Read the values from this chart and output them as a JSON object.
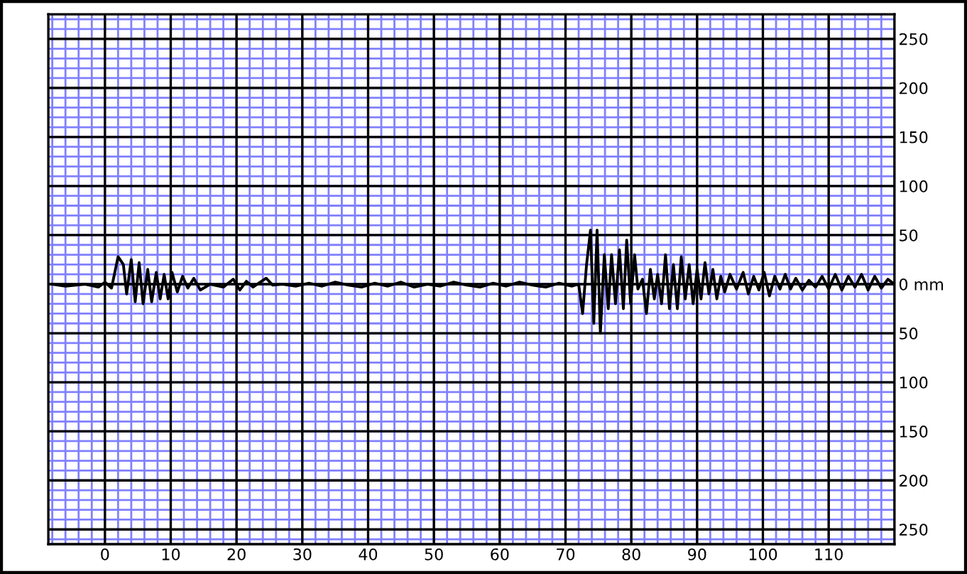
{
  "chart_data": {
    "type": "line",
    "xlim": [
      -8.6,
      120
    ],
    "ylim": [
      -265,
      275
    ],
    "xticks": [
      0,
      10,
      20,
      30,
      40,
      50,
      60,
      70,
      80,
      90,
      100,
      110
    ],
    "yticks": [
      {
        "value": 250,
        "label": "250"
      },
      {
        "value": 200,
        "label": "200"
      },
      {
        "value": 150,
        "label": "150"
      },
      {
        "value": 100,
        "label": "100"
      },
      {
        "value": 50,
        "label": "50"
      },
      {
        "value": 0,
        "label": "0 mm"
      },
      {
        "value": -50,
        "label": "50"
      },
      {
        "value": -100,
        "label": "100"
      },
      {
        "value": -150,
        "label": "150"
      },
      {
        "value": -200,
        "label": "200"
      },
      {
        "value": -250,
        "label": "250"
      }
    ],
    "grid": true,
    "marker": "none",
    "line_style": "solid",
    "series": [
      {
        "color": "#000000",
        "x": [
          -8,
          -6,
          -3,
          -1,
          0,
          1,
          2,
          2.8,
          3.3,
          4,
          4.6,
          5.2,
          5.8,
          6.5,
          7.1,
          7.8,
          8.4,
          9,
          9.6,
          10.2,
          11,
          11.8,
          12.6,
          13.5,
          14.5,
          16,
          18,
          19.5,
          20.5,
          21.5,
          22.5,
          24.5,
          25.5,
          27,
          29,
          31,
          33,
          35,
          37,
          39,
          41,
          43,
          45,
          47,
          49,
          51,
          53,
          55,
          57,
          59,
          61,
          63,
          65,
          67,
          69,
          71,
          72,
          72.6,
          73.2,
          73.8,
          74.3,
          74.8,
          75.3,
          75.9,
          76.5,
          77,
          77.6,
          78.2,
          78.8,
          79.3,
          79.9,
          80.5,
          81,
          81.7,
          82.3,
          82.9,
          83.5,
          84,
          84.6,
          85.2,
          85.8,
          86.4,
          87,
          87.6,
          88.2,
          88.8,
          89.4,
          90,
          90.6,
          91.2,
          91.8,
          92.4,
          93,
          93.6,
          94.2,
          95,
          96,
          97,
          97.8,
          98.6,
          99.4,
          100.2,
          101,
          101.8,
          102.6,
          103.4,
          104.2,
          105,
          106,
          107,
          108,
          109,
          110,
          111,
          112,
          113,
          114,
          115,
          116,
          117,
          118,
          119,
          120
        ],
        "values": [
          0,
          -2,
          0,
          -3,
          2,
          -4,
          28,
          20,
          -10,
          25,
          -18,
          22,
          -20,
          15,
          -18,
          12,
          -15,
          10,
          -15,
          12,
          -8,
          8,
          -4,
          6,
          -6,
          0,
          -3,
          5,
          -6,
          3,
          -3,
          6,
          -1,
          0,
          -2,
          1,
          -2,
          2,
          -1,
          -3,
          1,
          -2,
          2,
          -3,
          0,
          -2,
          2,
          -1,
          -3,
          1,
          -2,
          2,
          -1,
          -3,
          1,
          -2,
          0,
          -30,
          20,
          55,
          -40,
          55,
          -50,
          30,
          -25,
          30,
          -20,
          35,
          -25,
          45,
          -20,
          30,
          -5,
          5,
          -30,
          15,
          -15,
          10,
          -20,
          30,
          -25,
          20,
          -25,
          28,
          -15,
          20,
          -20,
          15,
          -15,
          22,
          -10,
          15,
          -15,
          8,
          -8,
          10,
          -5,
          12,
          -10,
          8,
          -6,
          12,
          -12,
          8,
          -5,
          10,
          -5,
          6,
          -6,
          4,
          -3,
          8,
          -5,
          10,
          -6,
          8,
          -3,
          10,
          -6,
          8,
          -4,
          5,
          0
        ]
      }
    ]
  }
}
